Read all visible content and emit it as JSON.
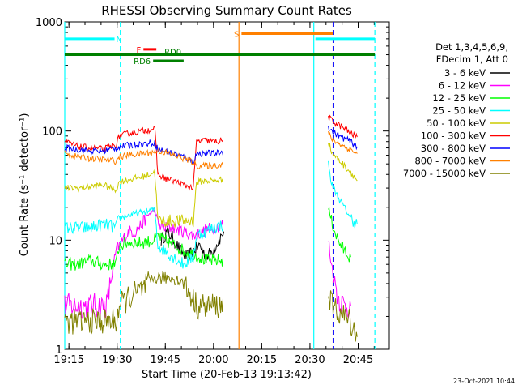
{
  "chart_data": {
    "type": "line",
    "title": "RHESSI Observing Summary Count Rates",
    "xlabel": "Start Time (20-Feb-13 19:13:42)",
    "ylabel": "Count Rate (s⁻¹ detector⁻¹)",
    "y_scale": "log",
    "ylim": [
      1,
      1000
    ],
    "xlim_minutes": [
      0,
      101
    ],
    "x_ticks": [
      {
        "label": "19:15",
        "minute": 1.3
      },
      {
        "label": "19:30",
        "minute": 16.3
      },
      {
        "label": "19:45",
        "minute": 31.3
      },
      {
        "label": "20:00",
        "minute": 46.3
      },
      {
        "label": "20:15",
        "minute": 61.3
      },
      {
        "label": "20:30",
        "minute": 76.3
      },
      {
        "label": "20:45",
        "minute": 91.3
      }
    ],
    "y_ticks": [
      {
        "label": "1",
        "value": 1
      },
      {
        "label": "10",
        "value": 10
      },
      {
        "label": "100",
        "value": 100
      },
      {
        "label": "1000",
        "value": 1000
      }
    ],
    "legend_header": [
      "Det 1,3,4,5,6,9,",
      "FDecim 1, Att 0"
    ],
    "legend_placement": "right",
    "timestamp": "23-Oct-2021 10:44",
    "series": [
      {
        "name": "3 - 6 keV",
        "color": "#000000",
        "points": [
          [
            30,
            10
          ],
          [
            32,
            12
          ],
          [
            34,
            10
          ],
          [
            36,
            8
          ],
          [
            38,
            7
          ],
          [
            40,
            8
          ],
          [
            42,
            9
          ],
          [
            44,
            7
          ],
          [
            46,
            8
          ],
          [
            48,
            10
          ],
          [
            49.5,
            12
          ]
        ]
      },
      {
        "name": "6 - 12 keV",
        "color": "#ff00ff",
        "points": [
          [
            0,
            2.5
          ],
          [
            5,
            2.5
          ],
          [
            10,
            2.5
          ],
          [
            13,
            2.5
          ],
          [
            16,
            8
          ],
          [
            18,
            10
          ],
          [
            20,
            12
          ],
          [
            22,
            12
          ],
          [
            24,
            14
          ],
          [
            26,
            17
          ],
          [
            28,
            19
          ],
          [
            29,
            14
          ],
          [
            31,
            13
          ],
          [
            34,
            13
          ],
          [
            37,
            12
          ],
          [
            40,
            11
          ],
          [
            43,
            12
          ],
          [
            46,
            13
          ],
          [
            49.5,
            14
          ],
          [
            82,
            10
          ],
          [
            83,
            6
          ],
          [
            85,
            3
          ],
          [
            87,
            2.5
          ],
          [
            89,
            2.5
          ]
        ]
      },
      {
        "name": "12 - 25 keV",
        "color": "#00ff00",
        "points": [
          [
            0,
            6
          ],
          [
            4,
            6
          ],
          [
            8,
            6.5
          ],
          [
            12,
            6
          ],
          [
            16,
            6
          ],
          [
            17,
            9
          ],
          [
            20,
            9.5
          ],
          [
            24,
            9.5
          ],
          [
            28,
            10
          ],
          [
            29,
            11
          ],
          [
            31,
            10
          ],
          [
            34,
            9
          ],
          [
            37,
            8
          ],
          [
            40,
            7.5
          ],
          [
            42,
            7
          ],
          [
            44,
            6.5
          ],
          [
            46,
            6.5
          ],
          [
            49.5,
            6.5
          ],
          [
            82,
            20
          ],
          [
            83,
            15
          ],
          [
            85,
            10
          ],
          [
            87,
            8
          ],
          [
            89,
            7
          ]
        ]
      },
      {
        "name": "25 - 50 keV",
        "color": "#00ffff",
        "points": [
          [
            0,
            13
          ],
          [
            4,
            13
          ],
          [
            8,
            13
          ],
          [
            12,
            14
          ],
          [
            16,
            13
          ],
          [
            17,
            16
          ],
          [
            20,
            17
          ],
          [
            24,
            18
          ],
          [
            28,
            19
          ],
          [
            29,
            9
          ],
          [
            31,
            8
          ],
          [
            34,
            7
          ],
          [
            37,
            6
          ],
          [
            40,
            7
          ],
          [
            41,
            11
          ],
          [
            44,
            12
          ],
          [
            46,
            13
          ],
          [
            49.5,
            14
          ],
          [
            82,
            50
          ],
          [
            83,
            33
          ],
          [
            85,
            25
          ],
          [
            87,
            20
          ],
          [
            89,
            16
          ],
          [
            91,
            14
          ]
        ]
      },
      {
        "name": "50 - 100 keV",
        "color": "#cccc00",
        "points": [
          [
            0,
            30
          ],
          [
            4,
            30
          ],
          [
            8,
            31
          ],
          [
            12,
            32
          ],
          [
            16,
            29
          ],
          [
            17,
            34
          ],
          [
            20,
            36
          ],
          [
            24,
            38
          ],
          [
            28,
            42
          ],
          [
            29,
            15
          ],
          [
            31,
            15
          ],
          [
            34,
            15
          ],
          [
            37,
            15
          ],
          [
            40,
            15
          ],
          [
            41,
            34
          ],
          [
            44,
            35
          ],
          [
            46,
            35
          ],
          [
            49.5,
            36
          ],
          [
            82,
            80
          ],
          [
            83,
            65
          ],
          [
            85,
            55
          ],
          [
            87,
            48
          ],
          [
            89,
            42
          ],
          [
            91,
            35
          ]
        ]
      },
      {
        "name": "100 - 300 keV",
        "color": "#ff0000",
        "points": [
          [
            0,
            80
          ],
          [
            4,
            72
          ],
          [
            8,
            70
          ],
          [
            12,
            68
          ],
          [
            16,
            75
          ],
          [
            17,
            90
          ],
          [
            20,
            95
          ],
          [
            24,
            100
          ],
          [
            28,
            105
          ],
          [
            29,
            40
          ],
          [
            31,
            37
          ],
          [
            34,
            35
          ],
          [
            37,
            32
          ],
          [
            40,
            30
          ],
          [
            41,
            80
          ],
          [
            44,
            82
          ],
          [
            46,
            80
          ],
          [
            49.5,
            82
          ],
          [
            82,
            135
          ],
          [
            83,
            125
          ],
          [
            85,
            115
          ],
          [
            87,
            105
          ],
          [
            89,
            95
          ],
          [
            91,
            88
          ]
        ]
      },
      {
        "name": "300 - 800 keV",
        "color": "#0000ff",
        "points": [
          [
            0,
            70
          ],
          [
            4,
            68
          ],
          [
            8,
            65
          ],
          [
            12,
            66
          ],
          [
            16,
            70
          ],
          [
            17,
            72
          ],
          [
            20,
            74
          ],
          [
            24,
            76
          ],
          [
            28,
            78
          ],
          [
            29,
            68
          ],
          [
            31,
            66
          ],
          [
            34,
            62
          ],
          [
            37,
            58
          ],
          [
            40,
            52
          ],
          [
            41,
            62
          ],
          [
            44,
            63
          ],
          [
            46,
            62
          ],
          [
            49.5,
            64
          ],
          [
            82,
            110
          ],
          [
            83,
            100
          ],
          [
            85,
            92
          ],
          [
            87,
            85
          ],
          [
            89,
            80
          ],
          [
            91,
            72
          ]
        ]
      },
      {
        "name": "800 - 7000 keV",
        "color": "#ff8000",
        "points": [
          [
            0,
            62
          ],
          [
            4,
            58
          ],
          [
            8,
            56
          ],
          [
            12,
            55
          ],
          [
            16,
            53
          ],
          [
            17,
            58
          ],
          [
            20,
            60
          ],
          [
            24,
            62
          ],
          [
            28,
            64
          ],
          [
            29,
            66
          ],
          [
            31,
            64
          ],
          [
            34,
            60
          ],
          [
            37,
            56
          ],
          [
            40,
            52
          ],
          [
            41,
            48
          ],
          [
            44,
            48
          ],
          [
            46,
            48
          ],
          [
            49.5,
            50
          ],
          [
            82,
            95
          ],
          [
            83,
            85
          ],
          [
            85,
            78
          ],
          [
            87,
            72
          ],
          [
            89,
            68
          ],
          [
            91,
            62
          ]
        ]
      },
      {
        "name": "7000 - 15000 keV",
        "color": "#808000",
        "points": [
          [
            0,
            1.8
          ],
          [
            4,
            1.8
          ],
          [
            8,
            1.8
          ],
          [
            12,
            1.8
          ],
          [
            16,
            1.8
          ],
          [
            17,
            2.5
          ],
          [
            20,
            3
          ],
          [
            24,
            3.5
          ],
          [
            28,
            4.5
          ],
          [
            31,
            4.5
          ],
          [
            34,
            4.5
          ],
          [
            37,
            4
          ],
          [
            39,
            3.2
          ],
          [
            41,
            2.5
          ],
          [
            44,
            2.5
          ],
          [
            46,
            2.5
          ],
          [
            49.5,
            2.5
          ],
          [
            82,
            3.5
          ],
          [
            83,
            2.5
          ],
          [
            85,
            2.2
          ],
          [
            87,
            2
          ],
          [
            89,
            1.8
          ],
          [
            91,
            1.3
          ]
        ]
      }
    ],
    "vertical_lines": [
      {
        "minute": 0,
        "color": "#00ffff",
        "style": "solid"
      },
      {
        "minute": 17.3,
        "color": "#00ffff",
        "style": "dashed"
      },
      {
        "minute": 54.2,
        "color": "#ff8000",
        "style": "solid"
      },
      {
        "minute": 77.5,
        "color": "#00ffff",
        "style": "solid"
      },
      {
        "minute": 83.5,
        "color": "#ff8000",
        "style": "dashed"
      },
      {
        "minute": 83.7,
        "color": "#0000ff",
        "style": "dashed"
      },
      {
        "minute": 96.5,
        "color": "#00ffff",
        "style": "dashed"
      }
    ],
    "flag_bars": [
      {
        "label": "N",
        "color": "#00ffff",
        "segments": [
          [
            0,
            15.5
          ],
          [
            78,
            96.5
          ]
        ],
        "value": 700
      },
      {
        "label": "S",
        "color": "#ff8000",
        "segments": [
          [
            55,
            83.5
          ]
        ],
        "value": 780
      },
      {
        "label": "F",
        "color": "#ff0000",
        "segments": [
          [
            24.5,
            28.5
          ]
        ],
        "value": 560
      },
      {
        "label": "RD0",
        "color": "#008000",
        "segments": [
          [
            0,
            96.5
          ]
        ],
        "value": 500
      },
      {
        "label": "RD6",
        "color": "#008000",
        "segments": [
          [
            27.5,
            37
          ]
        ],
        "value": 440
      }
    ]
  }
}
